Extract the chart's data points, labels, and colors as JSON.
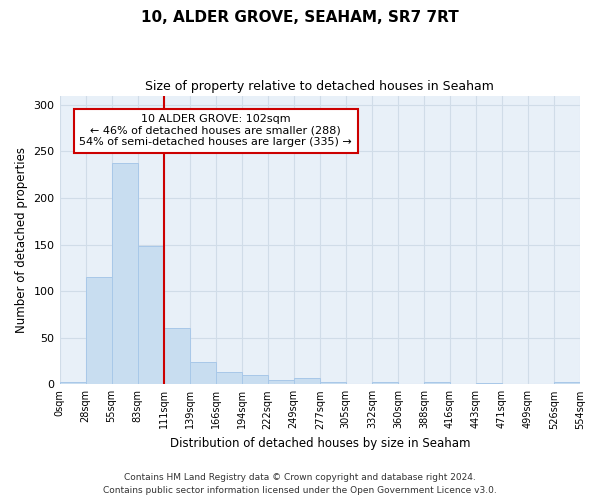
{
  "title": "10, ALDER GROVE, SEAHAM, SR7 7RT",
  "subtitle": "Size of property relative to detached houses in Seaham",
  "xlabel": "Distribution of detached houses by size in Seaham",
  "ylabel": "Number of detached properties",
  "bar_color": "#c8ddf0",
  "bar_edge_color": "#a8c8e8",
  "background_color": "#e8f0f8",
  "grid_color": "#d0dce8",
  "annotation_box_edge_color": "#cc0000",
  "annotation_line1": "10 ALDER GROVE: 102sqm",
  "annotation_line2": "← 46% of detached houses are smaller (288)",
  "annotation_line3": "54% of semi-detached houses are larger (335) →",
  "vline_x": 110,
  "vline_color": "#cc0000",
  "bin_edges": [
    0,
    27.5,
    55,
    82.5,
    110,
    137.5,
    165,
    192.5,
    220,
    247.5,
    275,
    302.5,
    330,
    357.5,
    385,
    412.5,
    440,
    467.5,
    495,
    522.5,
    550
  ],
  "bin_labels": [
    "0sqm",
    "28sqm",
    "55sqm",
    "83sqm",
    "111sqm",
    "139sqm",
    "166sqm",
    "194sqm",
    "222sqm",
    "249sqm",
    "277sqm",
    "305sqm",
    "332sqm",
    "360sqm",
    "388sqm",
    "416sqm",
    "443sqm",
    "471sqm",
    "499sqm",
    "526sqm",
    "554sqm"
  ],
  "bar_heights": [
    3,
    115,
    238,
    148,
    60,
    24,
    13,
    10,
    5,
    7,
    3,
    0,
    3,
    0,
    3,
    0,
    1,
    0,
    0,
    2
  ],
  "ylim": [
    0,
    310
  ],
  "yticks": [
    0,
    50,
    100,
    150,
    200,
    250,
    300
  ],
  "footer_line1": "Contains HM Land Registry data © Crown copyright and database right 2024.",
  "footer_line2": "Contains public sector information licensed under the Open Government Licence v3.0."
}
